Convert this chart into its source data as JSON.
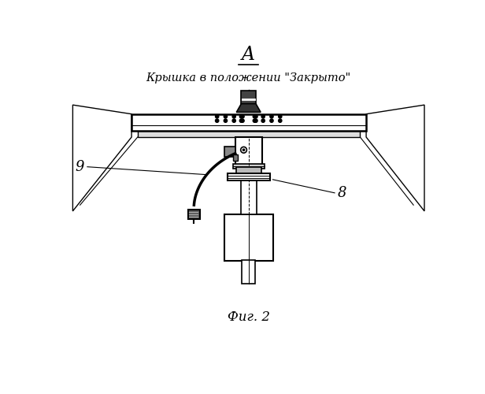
{
  "title_letter": "A",
  "title_text": "Крышка в положении \"Закрыто\"",
  "caption": "Фиг. 2",
  "label_9": "9",
  "label_8": "8",
  "bg_color": "#ffffff",
  "line_color": "#000000"
}
